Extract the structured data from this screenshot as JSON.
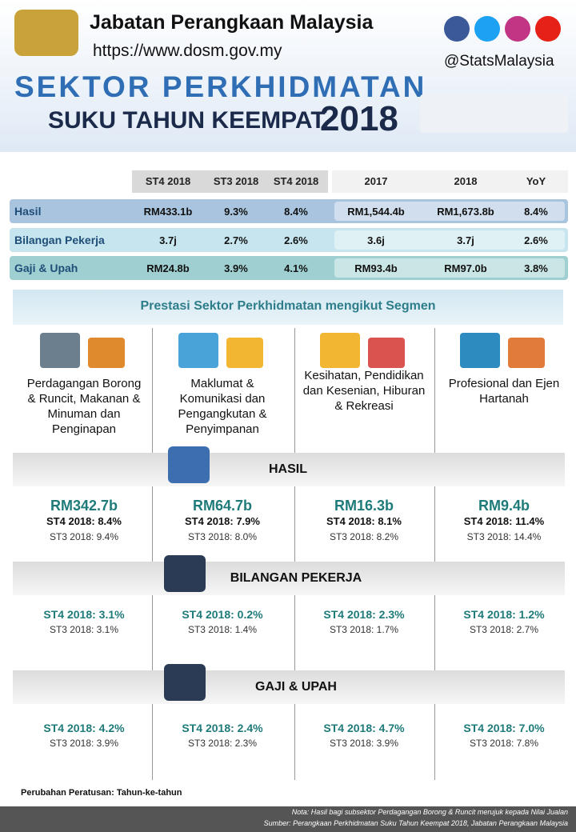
{
  "header": {
    "org": "Jabatan Perangkaan Malaysia",
    "url": "https://www.dosm.gov.my",
    "handle": "@StatsMalaysia",
    "title_line1": "SEKTOR PERKHIDMATAN",
    "title_line2": "SUKU TAHUN KEEMPAT",
    "year": "2018"
  },
  "summary": {
    "headers": [
      "ST4 2018",
      "ST3 2018",
      "ST4 2018",
      "2017",
      "2018",
      "YoY"
    ],
    "rows": [
      [
        "Hasil",
        "RM433.1b",
        "9.3%",
        "8.4%",
        "RM1,544.4b",
        "RM1,673.8b",
        "8.4%"
      ],
      [
        "Bilangan Pekerja",
        "3.7j",
        "2.7%",
        "2.6%",
        "3.6j",
        "3.7j",
        "2.6%"
      ],
      [
        "Gaji & Upah",
        "RM24.8b",
        "3.9%",
        "4.1%",
        "RM93.4b",
        "RM97.0b",
        "3.8%"
      ]
    ]
  },
  "segments": {
    "heading": "Prestasi Sektor Perkhidmatan mengikut Segmen",
    "names": [
      "Perdagangan Borong & Runcit, Makanan & Minuman dan Penginapan",
      "Maklumat & Komunikasi dan Pengangkutan & Penyimpanan",
      "Kesihatan, Pendidikan dan Kesenian, Hiburan & Rekreasi",
      "Profesional dan Ejen Hartanah"
    ]
  },
  "sections": [
    {
      "title": "HASIL",
      "items": [
        {
          "main": "RM342.7b",
          "st4": "ST4 2018: 8.4%",
          "st3": "ST3 2018: 9.4%"
        },
        {
          "main": "RM64.7b",
          "st4": "ST4 2018: 7.9%",
          "st3": "ST3 2018: 8.0%"
        },
        {
          "main": "RM16.3b",
          "st4": "ST4 2018: 8.1%",
          "st3": "ST3 2018: 8.2%"
        },
        {
          "main": "RM9.4b",
          "st4": "ST4 2018: 11.4%",
          "st3": "ST3 2018: 14.4%"
        }
      ]
    },
    {
      "title": "BILANGAN PEKERJA",
      "items": [
        {
          "st4": "ST4 2018: 3.1%",
          "st3": "ST3 2018: 3.1%"
        },
        {
          "st4": "ST4 2018: 0.2%",
          "st3": "ST3 2018: 1.4%"
        },
        {
          "st4": "ST4 2018: 2.3%",
          "st3": "ST3 2018: 1.7%"
        },
        {
          "st4": "ST4 2018: 1.2%",
          "st3": "ST3 2018: 2.7%"
        }
      ]
    },
    {
      "title": "GAJI & UPAH",
      "items": [
        {
          "st4": "ST4 2018: 4.2%",
          "st3": "ST3 2018: 3.9%"
        },
        {
          "st4": "ST4 2018: 2.4%",
          "st3": "ST3 2018: 2.3%"
        },
        {
          "st4": "ST4 2018: 4.7%",
          "st3": "ST3 2018: 3.9%"
        },
        {
          "st4": "ST4 2018: 7.0%",
          "st3": "ST3 2018: 7.8%"
        }
      ]
    }
  ],
  "footer": {
    "legend": "Perubahan Peratusan: Tahun-ke-tahun",
    "note": "Nota: Hasil bagi subsektor Perdagangan Borong & Runcit merujuk kepada Nilai Jualan",
    "source": "Sumber: Perangkaan Perkhidmatan Suku Tahun Keempat 2018, Jabatan Perangkaan Malaysia"
  }
}
